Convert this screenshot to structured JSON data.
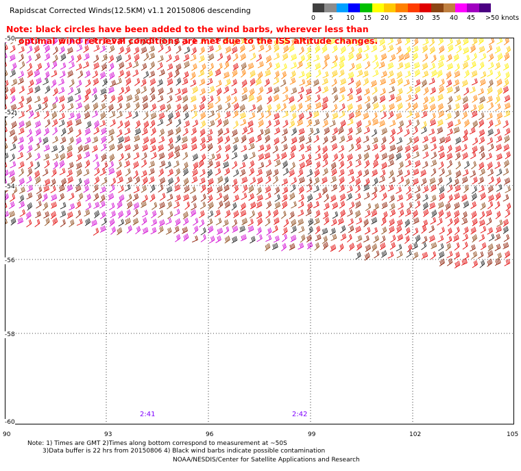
{
  "title": "Rapidscat Corrected Winds(12.5KM) v1.1 20150806 descending",
  "note_red": [
    "Note: black circles have been added to the wind barbs, wherever less than",
    "optimal wind retrieval conditions are met due to the ISS altitude changes."
  ],
  "legend": {
    "colors": [
      "#404040",
      "#8c8c8c",
      "#00a0ff",
      "#0000ff",
      "#00c000",
      "#ffff00",
      "#ffc800",
      "#ff8000",
      "#ff3c00",
      "#e00000",
      "#8b4513",
      "#c08040",
      "#ff00ff",
      "#a000c0",
      "#4b0082"
    ],
    "labels": [
      "0",
      "5",
      "10",
      "15",
      "20",
      "25",
      "30",
      "35",
      "40",
      "45",
      ">50 knots"
    ]
  },
  "axes": {
    "lat_labels": [
      "-50",
      "-52",
      "-54",
      "-56",
      "-58",
      "-60"
    ],
    "lon_labels": [
      "90",
      "93",
      "96",
      "99",
      "102",
      "105"
    ]
  },
  "pass_times": [
    "2:41",
    "2:42"
  ],
  "footer": {
    "line1": "Note: 1) Times are GMT 2)Times along bottom correspond to measurement at ~50S",
    "line2": "3)Data buffer is 22 hrs from 20150806 4) Black wind barbs indicate possible contamination",
    "credit": "NOAA/NESDIS/Center for Satellite Applications and Research"
  }
}
